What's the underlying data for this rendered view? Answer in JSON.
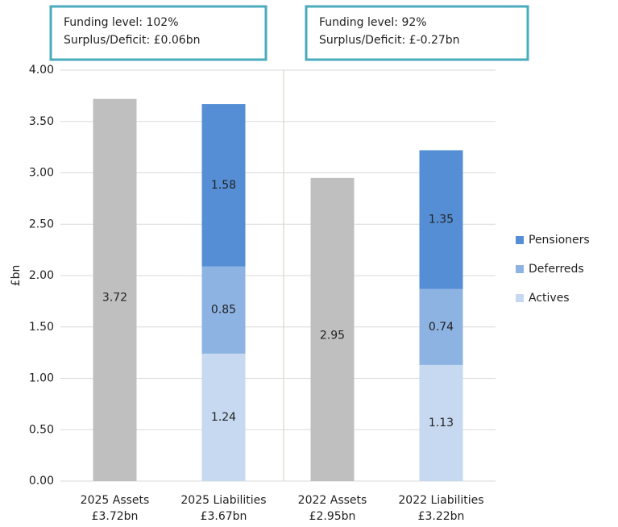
{
  "chart_data": {
    "type": "stacked_bar",
    "ylabel": "£bn",
    "categories": [
      [
        "2025 Assets",
        "£3.72bn"
      ],
      [
        "2025 Liabilities",
        "£3.67bn"
      ],
      [
        "2022 Assets",
        "£2.95bn"
      ],
      [
        "2022 Liabilities",
        "£3.22bn"
      ]
    ],
    "assets": {
      "color": "#bfbfbf",
      "values": [
        3.72,
        null,
        2.95,
        null
      ]
    },
    "series": [
      {
        "name": "Actives",
        "color": "#c6d9f0",
        "values": [
          null,
          1.24,
          null,
          1.13
        ]
      },
      {
        "name": "Deferreds",
        "color": "#8db3e2",
        "values": [
          null,
          0.85,
          null,
          0.74
        ]
      },
      {
        "name": "Pensioners",
        "color": "#558ed5",
        "values": [
          null,
          1.58,
          null,
          1.35
        ]
      }
    ],
    "ylim": [
      0,
      4
    ],
    "yticks": [
      {
        "value": 0,
        "label": "0.00"
      },
      {
        "value": 0.5,
        "label": "0.50"
      },
      {
        "value": 1,
        "label": "1.00"
      },
      {
        "value": 1.5,
        "label": "1.50"
      },
      {
        "value": 2,
        "label": "2.00"
      },
      {
        "value": 2.5,
        "label": "2.50"
      },
      {
        "value": 3,
        "label": "3.00"
      },
      {
        "value": 3.5,
        "label": "3.50"
      },
      {
        "value": 4,
        "label": "4.00"
      }
    ],
    "grid": true,
    "legend": "right",
    "annotations": [
      [
        "Funding level: 102%",
        "Surplus/Deficit: £0.06bn"
      ],
      [
        "Funding level: 92%",
        "Surplus/Deficit: £-0.27bn"
      ]
    ]
  }
}
